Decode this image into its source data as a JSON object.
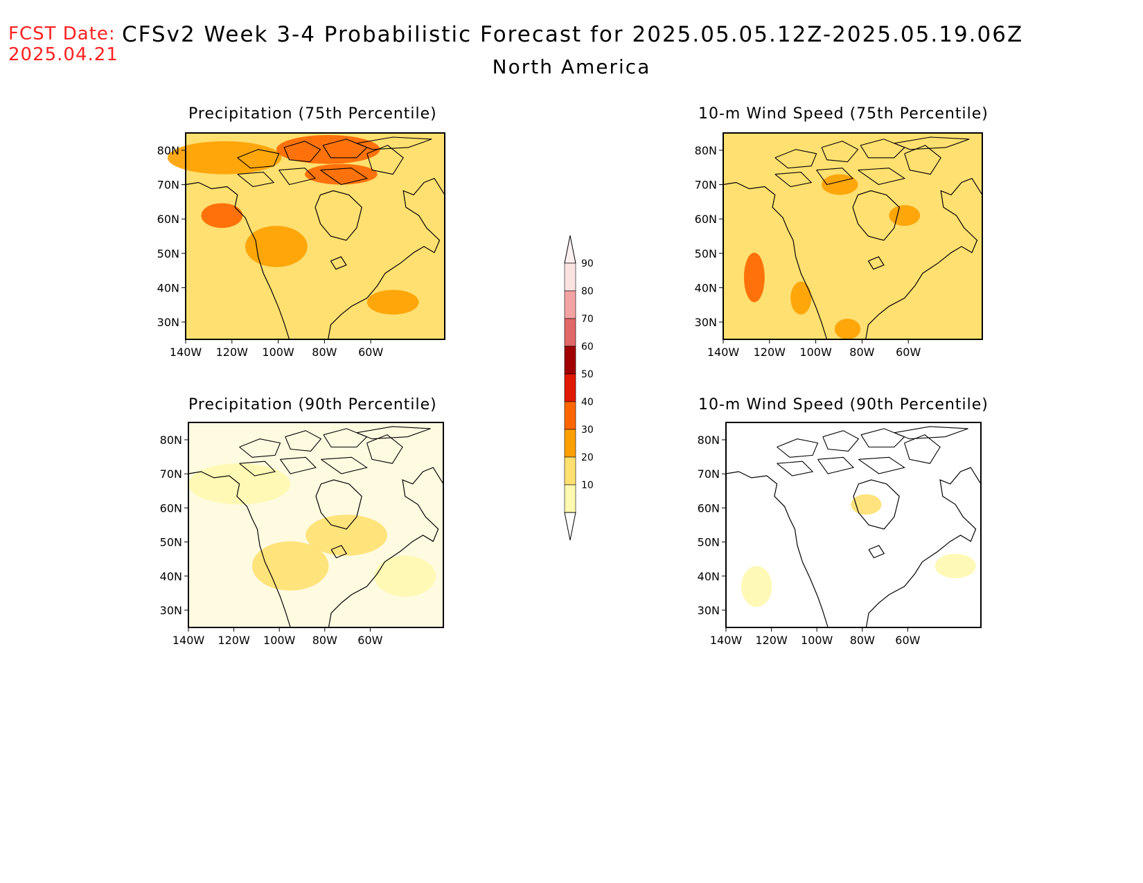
{
  "header": {
    "fcst_label": "FCST Date:",
    "fcst_date": "2025.04.21",
    "title": "CFSv2 Week 3-4 Probabilistic Forecast for 2025.05.05.12Z-2025.05.19.06Z",
    "region": "North America"
  },
  "axes": {
    "lat_labels": [
      "80N",
      "70N",
      "60N",
      "50N",
      "40N",
      "30N"
    ],
    "lon_labels": [
      "140W",
      "120W",
      "100W",
      "80W",
      "60W"
    ]
  },
  "panels": [
    {
      "title": "Precipitation (75th Percentile)",
      "level": 3
    },
    {
      "title": "10-m Wind Speed (75th Percentile)",
      "level": 2
    },
    {
      "title": "Precipitation (90th Percentile)",
      "level": 1
    },
    {
      "title": "10-m Wind Speed (90th Percentile)",
      "level": 0
    }
  ],
  "colorbar": {
    "labels": [
      "90",
      "80",
      "70",
      "60",
      "50",
      "40",
      "30",
      "20",
      "10"
    ],
    "colors": [
      "#fde2e2",
      "#f4a3a3",
      "#e06868",
      "#a00000",
      "#e01a00",
      "#ff6600",
      "#ffa000",
      "#ffe070",
      "#fff8b0"
    ]
  }
}
